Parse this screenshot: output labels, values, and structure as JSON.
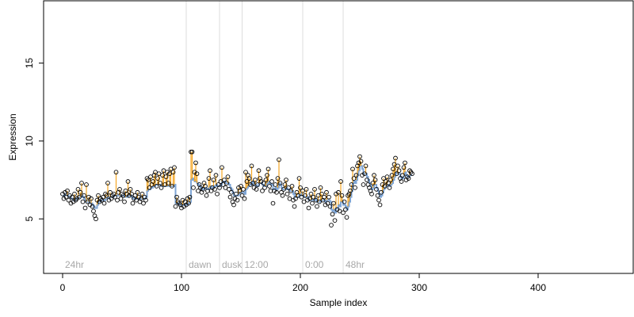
{
  "chart_data": {
    "type": "scatter",
    "title": "",
    "xlabel": "Sample index",
    "ylabel": "Expression",
    "xlim": [
      -16,
      480
    ],
    "ylim": [
      1.5,
      19.0
    ],
    "xticks": [
      0,
      100,
      200,
      300,
      400
    ],
    "yticks": [
      5,
      10,
      15
    ],
    "grid": false,
    "periods": [
      {
        "label": "24hr",
        "x": 0
      },
      {
        "label": "dawn",
        "x": 104
      },
      {
        "label": "dusk",
        "x": 132
      },
      {
        "label": "12:00",
        "x": 151
      },
      {
        "label": "0:00",
        "x": 202
      },
      {
        "label": "48hr",
        "x": 236
      }
    ],
    "series": [
      {
        "kind": "observed",
        "values": [
          6.6,
          6.3,
          6.7,
          6.4,
          6.8,
          6.2,
          6.5,
          6.0,
          6.4,
          6.1,
          6.6,
          6.2,
          6.3,
          6.9,
          6.4,
          6.7,
          7.3,
          6.1,
          6.5,
          5.7,
          7.2,
          6.1,
          6.4,
          5.9,
          6.3,
          5.8,
          5.5,
          5.2,
          5.0,
          6.2,
          6.5,
          6.1,
          6.3,
          6.2,
          6.4,
          6.0,
          6.6,
          6.5,
          7.3,
          6.2,
          6.7,
          6.3,
          6.5,
          6.6,
          6.4,
          8.0,
          6.2,
          6.7,
          6.9,
          6.3,
          6.6,
          6.5,
          6.1,
          6.8,
          6.6,
          7.4,
          6.5,
          6.9,
          6.6,
          6.0,
          6.3,
          6.5,
          6.2,
          6.7,
          6.4,
          6.1,
          6.3,
          6.6,
          6.0,
          6.4,
          6.2,
          7.6,
          7.5,
          7.0,
          7.7,
          7.2,
          7.4,
          7.8,
          8.0,
          7.1,
          7.6,
          7.9,
          7.3,
          7.0,
          7.8,
          8.1,
          7.2,
          7.7,
          8.0,
          7.3,
          7.9,
          8.2,
          7.1,
          8.0,
          8.3,
          5.8,
          6.4,
          6.1,
          6.0,
          5.9,
          5.7,
          6.2,
          5.8,
          6.1,
          5.9,
          6.3,
          6.0,
          6.4,
          9.3,
          9.3,
          7.0,
          8.0,
          8.6,
          7.9,
          6.8,
          7.2,
          7.0,
          6.7,
          6.9,
          7.3,
          7.1,
          6.5,
          6.8,
          7.6,
          8.1,
          6.8,
          7.0,
          7.5,
          6.9,
          7.8,
          6.6,
          7.2,
          7.0,
          7.4,
          8.3,
          7.2,
          7.5,
          7.0,
          7.3,
          7.7,
          6.9,
          6.4,
          6.7,
          6.1,
          5.9,
          6.3,
          6.6,
          6.2,
          7.0,
          6.8,
          7.1,
          6.5,
          6.9,
          6.3,
          8.0,
          7.4,
          7.8,
          7.6,
          7.2,
          8.4,
          7.3,
          7.0,
          7.5,
          6.9,
          7.2,
          8.1,
          7.6,
          7.4,
          6.8,
          7.3,
          7.0,
          7.5,
          7.8,
          8.2,
          7.1,
          6.8,
          7.4,
          6.0,
          6.8,
          7.2,
          6.7,
          7.6,
          8.8,
          7.3,
          6.7,
          6.5,
          6.9,
          7.2,
          7.5,
          6.6,
          7.0,
          6.3,
          6.8,
          7.1,
          6.2,
          5.8,
          6.3,
          6.7,
          6.5,
          7.6,
          7.0,
          6.4,
          6.8,
          6.1,
          6.5,
          6.9,
          6.2,
          5.7,
          6.3,
          6.6,
          6.0,
          6.4,
          6.9,
          6.2,
          5.8,
          6.5,
          6.1,
          7.0,
          6.6,
          6.2,
          6.4,
          5.9,
          6.7,
          6.0,
          6.4,
          5.8,
          4.6,
          5.3,
          6.0,
          4.9,
          6.6,
          5.6,
          6.7,
          5.5,
          7.4,
          6.5,
          5.4,
          6.1,
          5.6,
          5.1,
          6.5,
          6.6,
          6.8,
          7.2,
          8.2,
          7.6,
          7.0,
          7.8,
          8.4,
          8.6,
          9.0,
          8.7,
          7.8,
          7.2,
          7.9,
          8.4,
          7.5,
          7.2,
          7.0,
          6.8,
          6.6,
          7.3,
          7.8,
          7.5,
          6.9,
          6.5,
          6.2,
          5.9,
          6.7,
          7.2,
          7.6,
          7.1,
          7.4,
          7.7,
          7.3,
          7.0,
          7.5,
          7.8,
          8.2,
          8.5,
          8.9,
          7.9,
          8.4,
          8.1,
          7.6,
          7.4,
          7.8,
          8.3,
          8.6,
          7.5,
          7.7,
          7.6,
          8.1,
          8.0,
          7.9
        ],
        "fitted": [
          6.5,
          6.5,
          6.6,
          6.6,
          6.5,
          6.4,
          6.4,
          6.3,
          6.3,
          6.2,
          6.2,
          6.3,
          6.3,
          6.4,
          6.4,
          6.4,
          6.5,
          6.4,
          6.3,
          6.1,
          6.1,
          6.1,
          6.1,
          6.0,
          6.0,
          5.9,
          5.8,
          5.7,
          5.7,
          5.9,
          6.1,
          6.1,
          6.2,
          6.2,
          6.2,
          6.2,
          6.3,
          6.3,
          6.4,
          6.4,
          6.4,
          6.4,
          6.4,
          6.5,
          6.5,
          6.5,
          6.5,
          6.5,
          6.5,
          6.5,
          6.5,
          6.5,
          6.4,
          6.4,
          6.4,
          6.5,
          6.5,
          6.5,
          6.4,
          6.3,
          6.3,
          6.3,
          6.3,
          6.3,
          6.3,
          6.3,
          6.3,
          6.3,
          6.3,
          6.3,
          6.4,
          6.8,
          6.9,
          6.9,
          7.0,
          7.0,
          7.1,
          7.1,
          7.2,
          7.2,
          7.2,
          7.2,
          7.2,
          7.1,
          7.1,
          7.1,
          7.1,
          7.1,
          7.1,
          7.1,
          7.1,
          7.1,
          7.1,
          7.1,
          7.2,
          6.0,
          6.0,
          6.0,
          5.9,
          5.9,
          5.9,
          5.9,
          5.9,
          5.9,
          5.9,
          6.0,
          6.0,
          6.1,
          7.5,
          7.6,
          7.5,
          7.4,
          7.4,
          7.3,
          7.2,
          7.1,
          7.0,
          6.9,
          6.9,
          7.0,
          7.0,
          6.9,
          6.9,
          7.0,
          7.1,
          7.0,
          7.0,
          7.1,
          7.1,
          7.2,
          7.1,
          7.1,
          7.1,
          7.2,
          7.4,
          7.4,
          7.4,
          7.3,
          7.3,
          7.3,
          7.2,
          7.0,
          6.9,
          6.7,
          6.5,
          6.5,
          6.5,
          6.5,
          6.6,
          6.7,
          6.7,
          6.7,
          6.7,
          6.6,
          6.9,
          7.0,
          7.1,
          7.2,
          7.2,
          7.4,
          7.3,
          7.2,
          7.2,
          7.1,
          7.1,
          7.3,
          7.3,
          7.3,
          7.2,
          7.1,
          7.1,
          7.1,
          7.3,
          7.4,
          7.3,
          7.2,
          7.2,
          6.9,
          6.9,
          7.0,
          6.9,
          7.0,
          7.3,
          7.2,
          7.0,
          6.9,
          6.9,
          6.9,
          7.0,
          6.9,
          6.9,
          6.8,
          6.8,
          6.8,
          6.6,
          6.4,
          6.4,
          6.4,
          6.4,
          6.6,
          6.6,
          6.5,
          6.5,
          6.4,
          6.4,
          6.4,
          6.4,
          6.2,
          6.2,
          6.2,
          6.2,
          6.2,
          6.3,
          6.2,
          6.1,
          6.1,
          6.1,
          6.2,
          6.2,
          6.2,
          6.2,
          6.1,
          6.2,
          6.2,
          6.2,
          6.1,
          5.6,
          5.5,
          5.6,
          5.4,
          5.7,
          5.7,
          5.9,
          5.8,
          6.1,
          6.1,
          5.9,
          5.9,
          5.8,
          5.6,
          5.8,
          6.1,
          6.4,
          6.8,
          7.3,
          7.4,
          7.3,
          7.5,
          7.8,
          8.1,
          8.4,
          8.4,
          8.2,
          7.9,
          7.9,
          7.9,
          7.7,
          7.5,
          7.3,
          7.1,
          6.9,
          7.0,
          7.2,
          7.2,
          7.0,
          6.8,
          6.6,
          6.4,
          6.5,
          6.7,
          6.9,
          7.0,
          7.1,
          7.2,
          7.2,
          7.1,
          7.2,
          7.3,
          7.5,
          7.7,
          8.0,
          7.9,
          7.9,
          7.9,
          7.7,
          7.6,
          7.6,
          7.8,
          8.0,
          7.8,
          7.7,
          7.7,
          7.8,
          7.8,
          7.8
        ]
      }
    ]
  }
}
